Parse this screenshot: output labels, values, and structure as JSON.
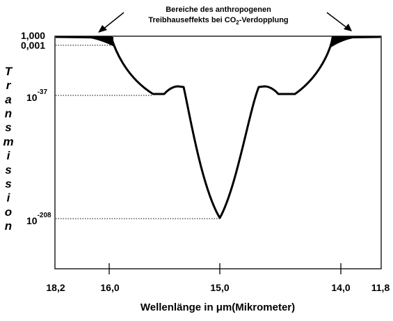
{
  "chart_data": {
    "type": "line",
    "annotation": {
      "line1": "Bereiche des anthropogenen",
      "line2_pre": "Treibhauseffekts bei CO",
      "line2_sub": "2",
      "line2_post": "-Verdopplung"
    },
    "ylabel": "Transmission",
    "xlabel": "Wellenlänge in μm(Mikrometer)",
    "x_ticks": [
      "18,2",
      "16,0",
      "15,0",
      "14,0",
      "11,8"
    ],
    "y_ticks": [
      {
        "base": "1,000",
        "exp": ""
      },
      {
        "base": "0,001",
        "exp": ""
      },
      {
        "base": "10",
        "exp": "-37"
      },
      {
        "base": "10",
        "exp": "-208"
      }
    ],
    "curve_description_levels": {
      "edges": "1,000",
      "shoulders": "0,001",
      "plateaus": "10^-37",
      "minimum": "10^-208 at 15,0 μm"
    },
    "colors": {
      "line": "#000000",
      "background": "#ffffff",
      "dotted": "#000000"
    }
  }
}
